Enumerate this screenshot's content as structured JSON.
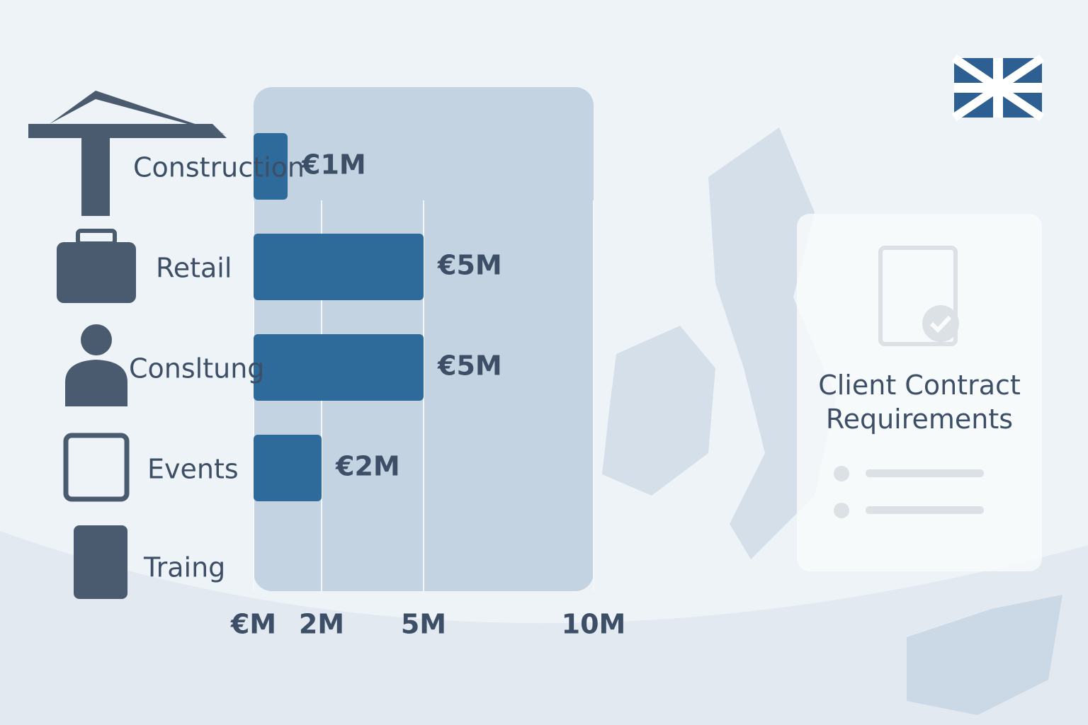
{
  "chart_data": {
    "type": "bar",
    "orientation": "horizontal",
    "categories": [
      "Construction",
      "Retail",
      "Consltung",
      "Events",
      "Traing"
    ],
    "values": [
      1,
      5,
      5,
      2,
      null
    ],
    "value_labels": [
      "€1M",
      "€5M",
      "€5M",
      "€2M",
      null
    ],
    "color": "#2e6a9a",
    "xlim": [
      0,
      10
    ],
    "xticks": [
      {
        "value": 0,
        "label": "€M"
      },
      {
        "value": 2,
        "label": "2M"
      },
      {
        "value": 5,
        "label": "5M"
      },
      {
        "value": 10,
        "label": "10M"
      }
    ],
    "grid": true
  },
  "card": {
    "title": "Client Contract Requirements"
  }
}
